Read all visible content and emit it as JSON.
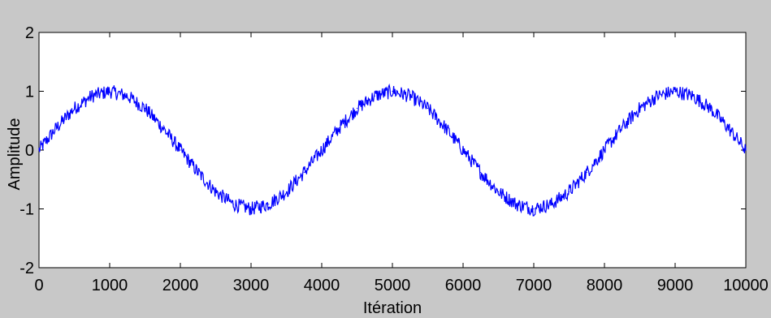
{
  "chart_data": {
    "type": "line",
    "title": "",
    "xlabel": "Itération",
    "ylabel": "Amplitude",
    "xlim": [
      0,
      10000
    ],
    "ylim": [
      -2,
      2
    ],
    "x_ticks": [
      0,
      1000,
      2000,
      3000,
      4000,
      5000,
      6000,
      7000,
      8000,
      9000,
      10000
    ],
    "y_ticks": [
      -2,
      -1,
      0,
      1,
      2
    ],
    "grid": false,
    "legend": "none",
    "series": [
      {
        "color": "#0000ff",
        "x": [
          0,
          250,
          500,
          750,
          1000,
          1250,
          1500,
          1750,
          2000,
          2250,
          2500,
          2750,
          3000,
          3250,
          3500,
          3750,
          4000,
          4250,
          4500,
          4750,
          5000,
          5250,
          5500,
          5750,
          6000,
          6250,
          6500,
          6750,
          7000,
          7250,
          7500,
          7750,
          8000,
          8250,
          8500,
          8750,
          9000,
          9250,
          9500,
          9750,
          10000
        ],
        "y": [
          0,
          0.38,
          0.71,
          0.92,
          1.0,
          0.92,
          0.71,
          0.38,
          0,
          -0.38,
          -0.71,
          -0.92,
          -1.0,
          -0.92,
          -0.71,
          -0.38,
          0,
          0.38,
          0.71,
          0.92,
          1.0,
          0.92,
          0.71,
          0.38,
          0,
          -0.38,
          -0.71,
          -0.92,
          -1.0,
          -0.92,
          -0.71,
          -0.38,
          0,
          0.38,
          0.71,
          0.92,
          1.0,
          0.92,
          0.71,
          0.38,
          0
        ]
      }
    ]
  }
}
